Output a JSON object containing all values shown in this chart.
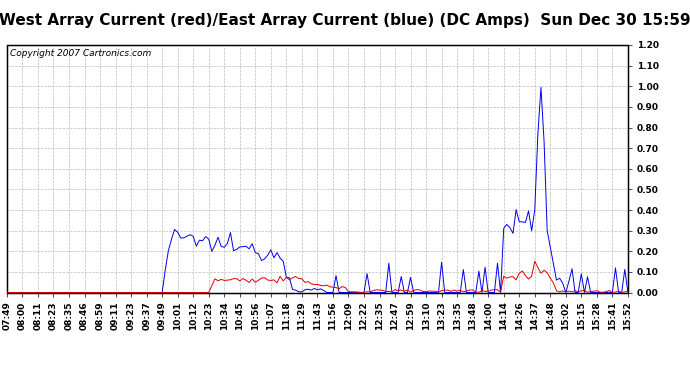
{
  "title": "West Array Current (red)/East Array Current (blue) (DC Amps)  Sun Dec 30 15:59",
  "copyright": "Copyright 2007 Cartronics.com",
  "ylim": [
    0.0,
    1.2
  ],
  "yticks": [
    0.0,
    0.1,
    0.2,
    0.3,
    0.4,
    0.5,
    0.6,
    0.7,
    0.8,
    0.9,
    1.0,
    1.1,
    1.2
  ],
  "background_color": "#ffffff",
  "plot_bg_color": "#ffffff",
  "grid_color": "#bbbbbb",
  "title_fontsize": 11,
  "tick_fontsize": 6.5,
  "blue_color": "#0000ee",
  "red_color": "#dd0000",
  "time_labels": [
    "07:49",
    "08:00",
    "08:11",
    "08:23",
    "08:35",
    "08:46",
    "08:59",
    "09:11",
    "09:23",
    "09:37",
    "09:49",
    "10:01",
    "10:12",
    "10:23",
    "10:34",
    "10:45",
    "10:56",
    "11:07",
    "11:18",
    "11:29",
    "11:43",
    "11:56",
    "12:09",
    "12:22",
    "12:35",
    "12:47",
    "12:59",
    "13:10",
    "13:23",
    "13:35",
    "13:48",
    "14:00",
    "14:14",
    "14:26",
    "14:37",
    "14:48",
    "15:02",
    "15:15",
    "15:28",
    "15:41",
    "15:52"
  ]
}
